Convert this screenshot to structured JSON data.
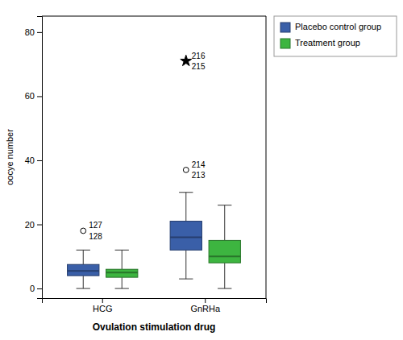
{
  "chart_data": {
    "type": "box",
    "xlabel": "Ovulation stimulation drug",
    "ylabel": "oocye number",
    "categories": [
      "HCG",
      "GnRHa"
    ],
    "ylim": [
      -3,
      85
    ],
    "yticks": [
      0,
      20,
      40,
      60,
      80
    ],
    "grid": false,
    "legend": "right",
    "series": [
      {
        "name": "Placebo control group",
        "color": "#3a5fa8",
        "q1": [
          4.0,
          12
        ],
        "median": [
          5.5,
          16
        ],
        "q3": [
          7.5,
          21
        ],
        "whisker_low": [
          0,
          3
        ],
        "whisker_high": [
          12,
          30
        ],
        "outliers": [
          [
            {
              "value": 18,
              "marker": "circle",
              "label_above": "127",
              "label_below": "128"
            }
          ],
          [
            {
              "value": 37,
              "marker": "circle",
              "label_above": "214",
              "label_below": "213"
            },
            {
              "value": 71,
              "marker": "star",
              "label_above": "216",
              "label_below": "215"
            }
          ]
        ]
      },
      {
        "name": "Treatment group",
        "color": "#3db540",
        "q1": [
          3.5,
          8
        ],
        "median": [
          5.0,
          10
        ],
        "q3": [
          6.0,
          15
        ],
        "whisker_low": [
          0,
          0
        ],
        "whisker_high": [
          12,
          26
        ],
        "outliers": [
          [],
          []
        ]
      }
    ]
  }
}
